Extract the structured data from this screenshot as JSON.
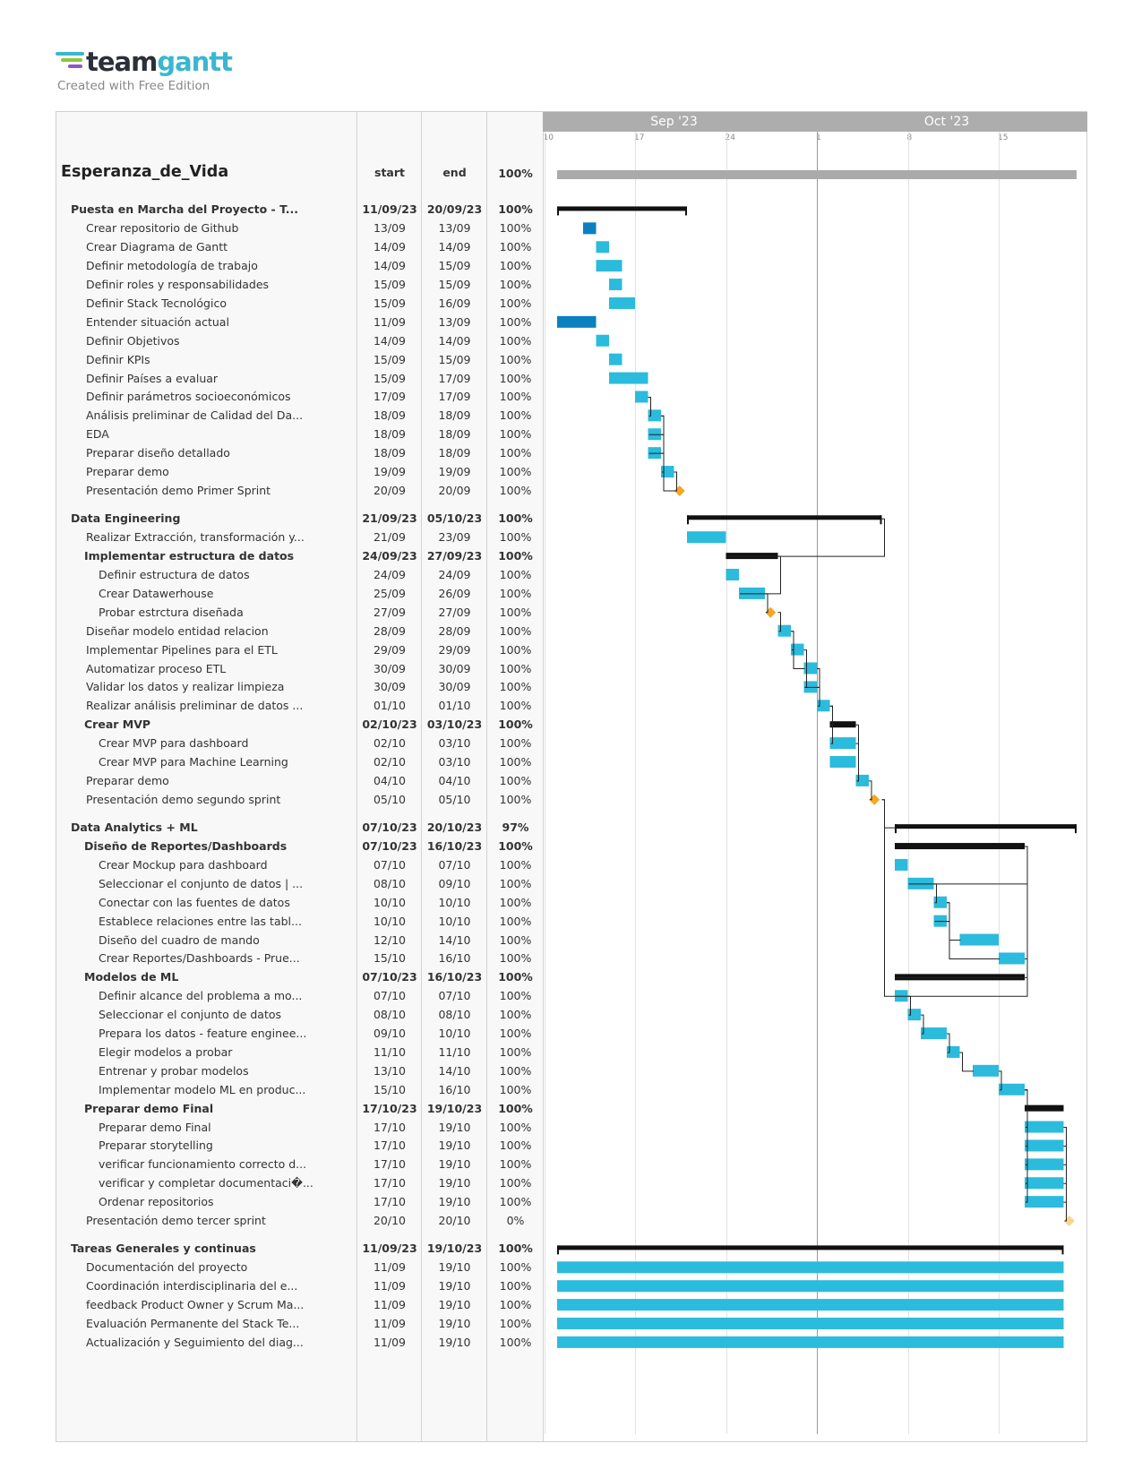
{
  "brand": {
    "logo_team": "team",
    "logo_gantt": "gantt",
    "tagline": "Created with Free Edition"
  },
  "columns": {
    "start": "start",
    "end": "end"
  },
  "months": [
    {
      "label": "Sep '23",
      "day": "2023-09-20"
    },
    {
      "label": "Oct '23",
      "day": "2023-10-11"
    }
  ],
  "day_ticks": [
    {
      "label": "10",
      "date": "2023-09-10"
    },
    {
      "label": "17",
      "date": "2023-09-17"
    },
    {
      "label": "24",
      "date": "2023-09-24"
    },
    {
      "label": "1",
      "date": "2023-10-01"
    },
    {
      "label": "8",
      "date": "2023-10-08"
    },
    {
      "label": "15",
      "date": "2023-10-15"
    }
  ],
  "today": "2023-10-01",
  "colors": {
    "task": "#2bbbdc",
    "task_dark": "#0a80c0",
    "group": "#111111",
    "project": "#aaaaaa",
    "milestone": "#f5a623",
    "milestone_pending": "#f8d58f"
  },
  "project": {
    "name": "Esperanza_de_Vida",
    "percent": "100%",
    "start": "2023-09-11",
    "end": "2023-10-20"
  },
  "rows": [
    {
      "gap": true
    },
    {
      "level": 0,
      "type": "group",
      "name": "Puesta en Marcha del Proyecto - T...",
      "start": "11/09/23",
      "end": "20/09/23",
      "pct": "100%",
      "s": "2023-09-11",
      "e": "2023-09-20"
    },
    {
      "level": 1,
      "type": "task",
      "name": "Crear repositorio de Github",
      "start": "13/09",
      "end": "13/09",
      "pct": "100%",
      "s": "2023-09-13",
      "e": "2023-09-13",
      "dark": true
    },
    {
      "level": 1,
      "type": "task",
      "name": "Crear Diagrama de Gantt",
      "start": "14/09",
      "end": "14/09",
      "pct": "100%",
      "s": "2023-09-14",
      "e": "2023-09-14"
    },
    {
      "level": 1,
      "type": "task",
      "name": "Definir metodología de trabajo",
      "start": "14/09",
      "end": "15/09",
      "pct": "100%",
      "s": "2023-09-14",
      "e": "2023-09-15"
    },
    {
      "level": 1,
      "type": "task",
      "name": "Definir roles y responsabilidades",
      "start": "15/09",
      "end": "15/09",
      "pct": "100%",
      "s": "2023-09-15",
      "e": "2023-09-15"
    },
    {
      "level": 1,
      "type": "task",
      "name": "Definir Stack Tecnológico",
      "start": "15/09",
      "end": "16/09",
      "pct": "100%",
      "s": "2023-09-15",
      "e": "2023-09-16"
    },
    {
      "level": 1,
      "type": "task",
      "name": "Entender situación actual",
      "start": "11/09",
      "end": "13/09",
      "pct": "100%",
      "s": "2023-09-11",
      "e": "2023-09-13",
      "dark": true
    },
    {
      "level": 1,
      "type": "task",
      "name": "Definir Objetivos",
      "start": "14/09",
      "end": "14/09",
      "pct": "100%",
      "s": "2023-09-14",
      "e": "2023-09-14"
    },
    {
      "level": 1,
      "type": "task",
      "name": "Definir KPIs",
      "start": "15/09",
      "end": "15/09",
      "pct": "100%",
      "s": "2023-09-15",
      "e": "2023-09-15"
    },
    {
      "level": 1,
      "type": "task",
      "name": "Definir Países a evaluar",
      "start": "15/09",
      "end": "17/09",
      "pct": "100%",
      "s": "2023-09-15",
      "e": "2023-09-17"
    },
    {
      "level": 1,
      "type": "task",
      "name": "Definir parámetros socioeconómicos",
      "start": "17/09",
      "end": "17/09",
      "pct": "100%",
      "s": "2023-09-17",
      "e": "2023-09-17"
    },
    {
      "level": 1,
      "type": "task",
      "name": "Análisis preliminar de Calidad del Da...",
      "start": "18/09",
      "end": "18/09",
      "pct": "100%",
      "s": "2023-09-18",
      "e": "2023-09-18"
    },
    {
      "level": 1,
      "type": "task",
      "name": "EDA",
      "start": "18/09",
      "end": "18/09",
      "pct": "100%",
      "s": "2023-09-18",
      "e": "2023-09-18"
    },
    {
      "level": 1,
      "type": "task",
      "name": "Preparar diseño detallado",
      "start": "18/09",
      "end": "18/09",
      "pct": "100%",
      "s": "2023-09-18",
      "e": "2023-09-18"
    },
    {
      "level": 1,
      "type": "task",
      "name": "Preparar demo",
      "start": "19/09",
      "end": "19/09",
      "pct": "100%",
      "s": "2023-09-19",
      "e": "2023-09-19"
    },
    {
      "level": 1,
      "type": "milestone",
      "name": "Presentación demo Primer Sprint",
      "start": "20/09",
      "end": "20/09",
      "pct": "100%",
      "s": "2023-09-20",
      "e": "2023-09-20"
    },
    {
      "gap": true
    },
    {
      "level": 0,
      "type": "group",
      "name": "Data Engineering",
      "start": "21/09/23",
      "end": "05/10/23",
      "pct": "100%",
      "s": "2023-09-21",
      "e": "2023-10-05"
    },
    {
      "level": 1,
      "type": "task",
      "name": "Realizar Extracción, transformación y...",
      "start": "21/09",
      "end": "23/09",
      "pct": "100%",
      "s": "2023-09-21",
      "e": "2023-09-23"
    },
    {
      "level": 1,
      "type": "subgroup",
      "name": "Implementar estructura de datos",
      "start": "24/09/23",
      "end": "27/09/23",
      "pct": "100%",
      "s": "2023-09-24",
      "e": "2023-09-27"
    },
    {
      "level": 2,
      "type": "task",
      "name": "Definir estructura de datos",
      "start": "24/09",
      "end": "24/09",
      "pct": "100%",
      "s": "2023-09-24",
      "e": "2023-09-24"
    },
    {
      "level": 2,
      "type": "task",
      "name": "Crear Datawerhouse",
      "start": "25/09",
      "end": "26/09",
      "pct": "100%",
      "s": "2023-09-25",
      "e": "2023-09-26"
    },
    {
      "level": 2,
      "type": "milestone",
      "name": "Probar estrctura diseñada",
      "start": "27/09",
      "end": "27/09",
      "pct": "100%",
      "s": "2023-09-27",
      "e": "2023-09-27"
    },
    {
      "level": 1,
      "type": "task",
      "name": "Diseñar modelo entidad relacion",
      "start": "28/09",
      "end": "28/09",
      "pct": "100%",
      "s": "2023-09-28",
      "e": "2023-09-28"
    },
    {
      "level": 1,
      "type": "task",
      "name": "Implementar Pipelines para el ETL",
      "start": "29/09",
      "end": "29/09",
      "pct": "100%",
      "s": "2023-09-29",
      "e": "2023-09-29"
    },
    {
      "level": 1,
      "type": "task",
      "name": "Automatizar proceso ETL",
      "start": "30/09",
      "end": "30/09",
      "pct": "100%",
      "s": "2023-09-30",
      "e": "2023-09-30"
    },
    {
      "level": 1,
      "type": "task",
      "name": "Validar los datos y realizar limpieza",
      "start": "30/09",
      "end": "30/09",
      "pct": "100%",
      "s": "2023-09-30",
      "e": "2023-09-30"
    },
    {
      "level": 1,
      "type": "task",
      "name": "Realizar análisis preliminar de datos ...",
      "start": "01/10",
      "end": "01/10",
      "pct": "100%",
      "s": "2023-10-01",
      "e": "2023-10-01"
    },
    {
      "level": 1,
      "type": "subgroup",
      "name": "Crear MVP",
      "start": "02/10/23",
      "end": "03/10/23",
      "pct": "100%",
      "s": "2023-10-02",
      "e": "2023-10-03"
    },
    {
      "level": 2,
      "type": "task",
      "name": "Crear MVP para dashboard",
      "start": "02/10",
      "end": "03/10",
      "pct": "100%",
      "s": "2023-10-02",
      "e": "2023-10-03"
    },
    {
      "level": 2,
      "type": "task",
      "name": "Crear MVP para Machine Learning",
      "start": "02/10",
      "end": "03/10",
      "pct": "100%",
      "s": "2023-10-02",
      "e": "2023-10-03"
    },
    {
      "level": 1,
      "type": "task",
      "name": "Preparar demo",
      "start": "04/10",
      "end": "04/10",
      "pct": "100%",
      "s": "2023-10-04",
      "e": "2023-10-04"
    },
    {
      "level": 1,
      "type": "milestone",
      "name": "Presentación demo segundo sprint",
      "start": "05/10",
      "end": "05/10",
      "pct": "100%",
      "s": "2023-10-05",
      "e": "2023-10-05"
    },
    {
      "gap": true
    },
    {
      "level": 0,
      "type": "group",
      "name": "Data Analytics + ML",
      "start": "07/10/23",
      "end": "20/10/23",
      "pct": "97%",
      "s": "2023-10-07",
      "e": "2023-10-20"
    },
    {
      "level": 1,
      "type": "subgroup",
      "name": "Diseño de Reportes/Dashboards",
      "start": "07/10/23",
      "end": "16/10/23",
      "pct": "100%",
      "s": "2023-10-07",
      "e": "2023-10-16"
    },
    {
      "level": 2,
      "type": "task",
      "name": "Crear Mockup para dashboard",
      "start": "07/10",
      "end": "07/10",
      "pct": "100%",
      "s": "2023-10-07",
      "e": "2023-10-07"
    },
    {
      "level": 2,
      "type": "task",
      "name": "Seleccionar el conjunto de datos | ...",
      "start": "08/10",
      "end": "09/10",
      "pct": "100%",
      "s": "2023-10-08",
      "e": "2023-10-09"
    },
    {
      "level": 2,
      "type": "task",
      "name": "Conectar con las fuentes de datos",
      "start": "10/10",
      "end": "10/10",
      "pct": "100%",
      "s": "2023-10-10",
      "e": "2023-10-10"
    },
    {
      "level": 2,
      "type": "task",
      "name": "Establece relaciones entre las tabl...",
      "start": "10/10",
      "end": "10/10",
      "pct": "100%",
      "s": "2023-10-10",
      "e": "2023-10-10"
    },
    {
      "level": 2,
      "type": "task",
      "name": "Diseño del cuadro de mando",
      "start": "12/10",
      "end": "14/10",
      "pct": "100%",
      "s": "2023-10-12",
      "e": "2023-10-14"
    },
    {
      "level": 2,
      "type": "task",
      "name": "Crear Reportes/Dashboards - Prue...",
      "start": "15/10",
      "end": "16/10",
      "pct": "100%",
      "s": "2023-10-15",
      "e": "2023-10-16"
    },
    {
      "level": 1,
      "type": "subgroup",
      "name": "Modelos de ML",
      "start": "07/10/23",
      "end": "16/10/23",
      "pct": "100%",
      "s": "2023-10-07",
      "e": "2023-10-16"
    },
    {
      "level": 2,
      "type": "task",
      "name": "Definir alcance del problema a mo...",
      "start": "07/10",
      "end": "07/10",
      "pct": "100%",
      "s": "2023-10-07",
      "e": "2023-10-07"
    },
    {
      "level": 2,
      "type": "task",
      "name": "Seleccionar el conjunto de datos",
      "start": "08/10",
      "end": "08/10",
      "pct": "100%",
      "s": "2023-10-08",
      "e": "2023-10-08"
    },
    {
      "level": 2,
      "type": "task",
      "name": "Prepara los datos - feature enginee...",
      "start": "09/10",
      "end": "10/10",
      "pct": "100%",
      "s": "2023-10-09",
      "e": "2023-10-10"
    },
    {
      "level": 2,
      "type": "task",
      "name": "Elegir modelos a probar",
      "start": "11/10",
      "end": "11/10",
      "pct": "100%",
      "s": "2023-10-11",
      "e": "2023-10-11"
    },
    {
      "level": 2,
      "type": "task",
      "name": "Entrenar y probar modelos",
      "start": "13/10",
      "end": "14/10",
      "pct": "100%",
      "s": "2023-10-13",
      "e": "2023-10-14"
    },
    {
      "level": 2,
      "type": "task",
      "name": "Implementar modelo ML en produc...",
      "start": "15/10",
      "end": "16/10",
      "pct": "100%",
      "s": "2023-10-15",
      "e": "2023-10-16"
    },
    {
      "level": 1,
      "type": "subgroup",
      "name": "Preparar demo Final",
      "start": "17/10/23",
      "end": "19/10/23",
      "pct": "100%",
      "s": "2023-10-17",
      "e": "2023-10-19"
    },
    {
      "level": 2,
      "type": "task",
      "name": "Preparar demo Final",
      "start": "17/10",
      "end": "19/10",
      "pct": "100%",
      "s": "2023-10-17",
      "e": "2023-10-19"
    },
    {
      "level": 2,
      "type": "task",
      "name": "Preparar storytelling",
      "start": "17/10",
      "end": "19/10",
      "pct": "100%",
      "s": "2023-10-17",
      "e": "2023-10-19"
    },
    {
      "level": 2,
      "type": "task",
      "name": "verificar funcionamiento correcto d...",
      "start": "17/10",
      "end": "19/10",
      "pct": "100%",
      "s": "2023-10-17",
      "e": "2023-10-19"
    },
    {
      "level": 2,
      "type": "task",
      "name": "verificar y completar documentaci�...",
      "start": "17/10",
      "end": "19/10",
      "pct": "100%",
      "s": "2023-10-17",
      "e": "2023-10-19"
    },
    {
      "level": 2,
      "type": "task",
      "name": "Ordenar repositorios",
      "start": "17/10",
      "end": "19/10",
      "pct": "100%",
      "s": "2023-10-17",
      "e": "2023-10-19"
    },
    {
      "level": 1,
      "type": "milestone",
      "name": "Presentación demo tercer sprint",
      "start": "20/10",
      "end": "20/10",
      "pct": "0%",
      "s": "2023-10-20",
      "e": "2023-10-20",
      "pending": true
    },
    {
      "gap": true
    },
    {
      "level": 0,
      "type": "group",
      "name": "Tareas Generales y continuas",
      "start": "11/09/23",
      "end": "19/10/23",
      "pct": "100%",
      "s": "2023-09-11",
      "e": "2023-10-19"
    },
    {
      "level": 1,
      "type": "task",
      "name": "Documentación del proyecto",
      "start": "11/09",
      "end": "19/10",
      "pct": "100%",
      "s": "2023-09-11",
      "e": "2023-10-19"
    },
    {
      "level": 1,
      "type": "task",
      "name": "Coordinación interdisciplinaria del e...",
      "start": "11/09",
      "end": "19/10",
      "pct": "100%",
      "s": "2023-09-11",
      "e": "2023-10-19"
    },
    {
      "level": 1,
      "type": "task",
      "name": "feedback Product Owner y Scrum Ma...",
      "start": "11/09",
      "end": "19/10",
      "pct": "100%",
      "s": "2023-09-11",
      "e": "2023-10-19"
    },
    {
      "level": 1,
      "type": "task",
      "name": "Evaluación Permanente del Stack Te...",
      "start": "11/09",
      "end": "19/10",
      "pct": "100%",
      "s": "2023-09-11",
      "e": "2023-10-19"
    },
    {
      "level": 1,
      "type": "task",
      "name": "Actualización y Seguimiento del diag...",
      "start": "11/09",
      "end": "19/10",
      "pct": "100%",
      "s": "2023-09-11",
      "e": "2023-10-19"
    }
  ]
}
